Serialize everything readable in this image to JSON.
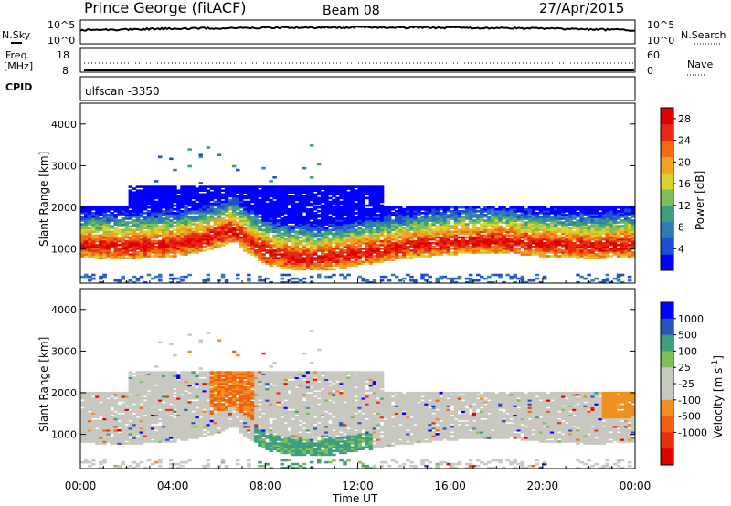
{
  "header": {
    "station": "Prince George (fitACF)",
    "beam": "Beam 08",
    "date": "27/Apr/2015"
  },
  "noise_panel": {
    "left_label": "N.Sky",
    "right_label": "N.Search",
    "left_ticks": [
      "10^5",
      "10^0"
    ],
    "right_ticks": [
      "10^5",
      "10^0"
    ]
  },
  "freq_panel": {
    "left_label_1": "Freq.",
    "left_label_2": "[MHz]",
    "right_label": "Nave",
    "left_ticks": [
      "18",
      "8"
    ],
    "right_ticks": [
      "60",
      "0"
    ]
  },
  "cpid": {
    "label": "CPID",
    "value": "ulfscan -3350"
  },
  "colors": {
    "power_scale": [
      "#0000ff",
      "#1f4fd0",
      "#2e7bb5",
      "#3f9d80",
      "#7cc05a",
      "#d9d32c",
      "#f0a323",
      "#f06a12",
      "#e82a12",
      "#e00000"
    ],
    "velocity_scale": [
      "#0000ff",
      "#2b52b5",
      "#3f9d80",
      "#7cc05a",
      "#c8c8c0",
      "#c8c8c0",
      "#f09020",
      "#f06010",
      "#e83010",
      "#e00000"
    ]
  },
  "chart_data": [
    {
      "type": "heatmap",
      "panel": "power",
      "ylabel": "Slant Range [km]",
      "yticks": [
        "1000",
        "2000",
        "3000",
        "4000"
      ],
      "ylim": [
        180,
        4500
      ],
      "xlim": [
        0,
        24
      ],
      "xticks": [
        "00:00",
        "04:00",
        "08:00",
        "12:00",
        "16:00",
        "20:00",
        "00:00"
      ],
      "colorbar": {
        "label": "Power [dB]",
        "ticks": [
          "4",
          "8",
          "12",
          "16",
          "20",
          "24",
          "28"
        ],
        "range": [
          0,
          30
        ]
      },
      "ridge_km": [
        [
          0,
          1070
        ],
        [
          2,
          1050
        ],
        [
          4,
          1100
        ],
        [
          5.5,
          1250
        ],
        [
          6.5,
          1450
        ],
        [
          7,
          1250
        ],
        [
          8,
          900
        ],
        [
          9,
          800
        ],
        [
          10,
          750
        ],
        [
          11,
          800
        ],
        [
          12,
          900
        ],
        [
          13,
          950
        ],
        [
          14,
          1050
        ],
        [
          16,
          1150
        ],
        [
          18,
          1200
        ],
        [
          20,
          1100
        ],
        [
          22,
          1050
        ],
        [
          24,
          1100
        ]
      ]
    },
    {
      "type": "heatmap",
      "panel": "velocity",
      "ylabel": "Slant Range [km]",
      "yticks": [
        "1000",
        "2000",
        "3000",
        "4000"
      ],
      "ylim": [
        180,
        4500
      ],
      "xlim": [
        0,
        24
      ],
      "xlabel": "Time UT",
      "xticks": [
        "00:00",
        "04:00",
        "08:00",
        "12:00",
        "16:00",
        "20:00",
        "00:00"
      ],
      "colorbar": {
        "label": "Velocity [m s",
        "label_sup": "-1",
        "label_end": "]",
        "ticks": [
          "1000",
          "500",
          "100",
          "25",
          "-25",
          "-100",
          "-500",
          "-1000"
        ]
      }
    }
  ]
}
